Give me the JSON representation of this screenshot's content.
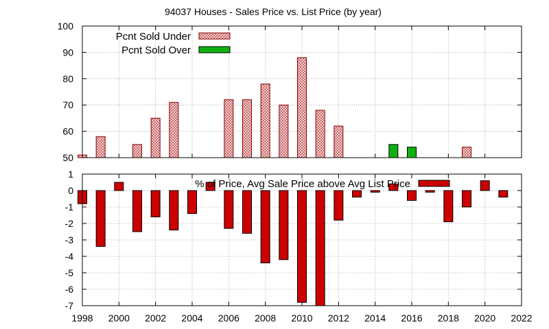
{
  "title": "94037 Houses - Sales Price vs. List Price (by year)",
  "colors": {
    "under_fill": "#f2c8c8",
    "under_stroke": "#8b0000",
    "over_fill": "#10b010",
    "pct_fill": "#cc0000",
    "grid": "#999999"
  },
  "chart_data": [
    {
      "type": "bar",
      "xlim": [
        1998,
        2022
      ],
      "ylim": [
        50,
        100
      ],
      "yticks": [
        50,
        60,
        70,
        80,
        90,
        100
      ],
      "grid": true,
      "legend_position": "top-left",
      "series": [
        {
          "name": "Pcnt Sold Under",
          "points": [
            {
              "x": 1998,
              "y": 51
            },
            {
              "x": 1999,
              "y": 58
            },
            {
              "x": 2001,
              "y": 55
            },
            {
              "x": 2002,
              "y": 65
            },
            {
              "x": 2003,
              "y": 71
            },
            {
              "x": 2006,
              "y": 72
            },
            {
              "x": 2007,
              "y": 72
            },
            {
              "x": 2008,
              "y": 78
            },
            {
              "x": 2009,
              "y": 70
            },
            {
              "x": 2010,
              "y": 88
            },
            {
              "x": 2011,
              "y": 68
            },
            {
              "x": 2012,
              "y": 62
            },
            {
              "x": 2019,
              "y": 54
            }
          ]
        },
        {
          "name": "Pcnt Sold Over",
          "points": [
            {
              "x": 2015,
              "y": 55
            },
            {
              "x": 2016,
              "y": 54
            }
          ]
        }
      ]
    },
    {
      "type": "bar",
      "xlim": [
        1998,
        2022
      ],
      "ylim": [
        -7,
        1
      ],
      "yticks": [
        -7,
        -6,
        -5,
        -4,
        -3,
        -2,
        -1,
        0,
        1
      ],
      "xticks": [
        1998,
        2000,
        2002,
        2004,
        2006,
        2008,
        2010,
        2012,
        2014,
        2016,
        2018,
        2020,
        2022
      ],
      "grid": true,
      "legend_position": "top-center",
      "series": [
        {
          "name": "% of Price, Avg Sale Price above Avg List Price",
          "points": [
            {
              "x": 1998,
              "y": -0.8
            },
            {
              "x": 1999,
              "y": -3.4
            },
            {
              "x": 2000,
              "y": 0.5
            },
            {
              "x": 2001,
              "y": -2.5
            },
            {
              "x": 2002,
              "y": -1.6
            },
            {
              "x": 2003,
              "y": -2.4
            },
            {
              "x": 2004,
              "y": -1.4
            },
            {
              "x": 2005,
              "y": 0.5
            },
            {
              "x": 2006,
              "y": -2.3
            },
            {
              "x": 2007,
              "y": -2.6
            },
            {
              "x": 2008,
              "y": -4.4
            },
            {
              "x": 2009,
              "y": -4.2
            },
            {
              "x": 2010,
              "y": -6.8
            },
            {
              "x": 2011,
              "y": -7.0
            },
            {
              "x": 2012,
              "y": -1.8
            },
            {
              "x": 2013,
              "y": -0.4
            },
            {
              "x": 2014,
              "y": -0.1
            },
            {
              "x": 2015,
              "y": 0.4
            },
            {
              "x": 2016,
              "y": -0.6
            },
            {
              "x": 2017,
              "y": -0.1
            },
            {
              "x": 2018,
              "y": -1.9
            },
            {
              "x": 2019,
              "y": -1.0
            },
            {
              "x": 2020,
              "y": 0.6
            },
            {
              "x": 2021,
              "y": -0.4
            }
          ]
        }
      ]
    }
  ]
}
